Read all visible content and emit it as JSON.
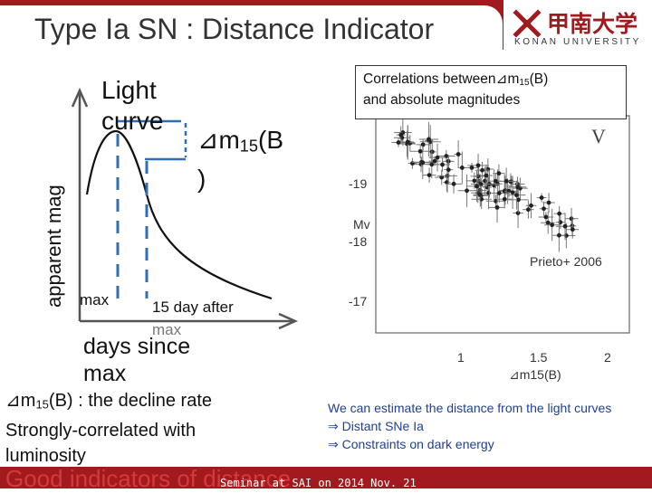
{
  "header": {
    "title": "Type Ia SN : Distance Indicator",
    "logo_text": "甲南大学",
    "logo_sub": "KONAN UNIVERSITY",
    "accent": "#a11a1e"
  },
  "sketch": {
    "ylabel": "apparent mag",
    "xlabel_line1": "days since",
    "xlabel_line2": "max",
    "light_label_line1": "Light",
    "light_label_line2": "curve",
    "delta_symbol": "⊿",
    "delta_m": "m",
    "delta_sub": "15",
    "delta_paren_open": "(B",
    "delta_paren_close": ")",
    "max_label": "max",
    "after_label_line1": "15 day after",
    "after_label_line2": "max"
  },
  "caption": {
    "line1_prefix": "Correlations between",
    "line1_m": "m",
    "line1_sub": "15",
    "line1_suffix": "(B)",
    "line2": "and absolute magnitudes"
  },
  "plot": {
    "band": "V",
    "ylabel": "Mv",
    "yticks": [
      "-19",
      "-18",
      "-17"
    ],
    "xticks": [
      "1",
      "1.5",
      "2"
    ],
    "xlabel": "⊿m15(B)",
    "citation": "Prieto+ 2006"
  },
  "bottom": {
    "line1_m": "m",
    "line1_sub": "15",
    "line1_rest": "(B) : the decline rate",
    "line2": "Strongly-correlated with",
    "line3": "luminosity",
    "good": "Good indicators of distance"
  },
  "notes": {
    "line1": "We can estimate the distance from the light curves",
    "line2": "⇒ Distant SNe Ia",
    "line3": "⇒ Constraints on dark energy"
  },
  "footer": {
    "text": "Seminar at SAI on 2014 Nov. 21"
  }
}
